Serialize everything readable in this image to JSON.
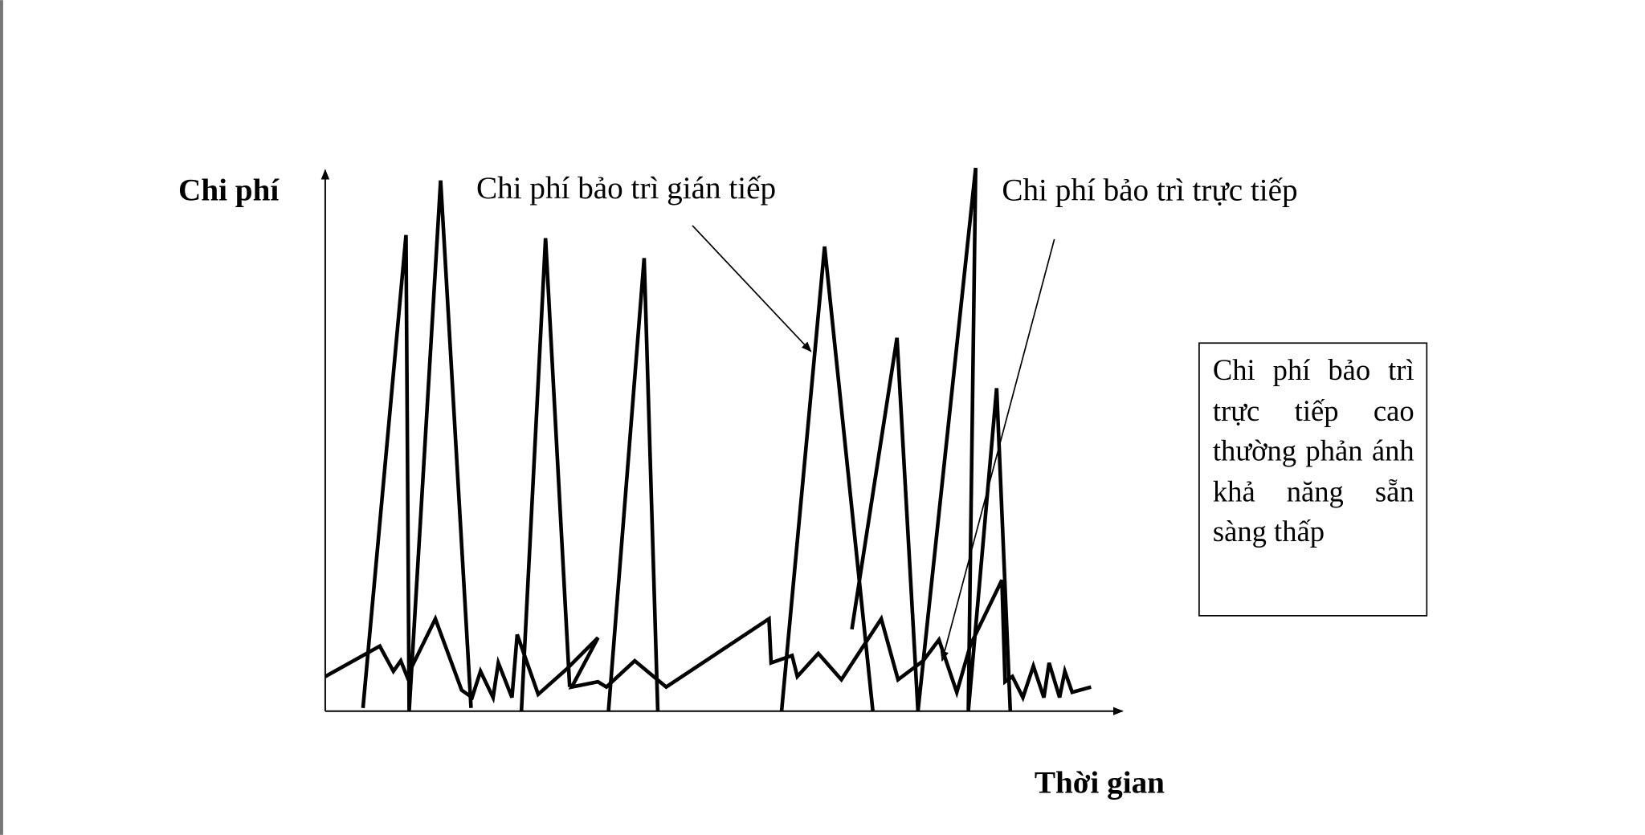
{
  "axes": {
    "y_label": "Chi phí",
    "x_label": "Thời gian"
  },
  "labels": [
    "Chi phí bảo trì gián tiếp",
    "Chi phí bảo trì trực tiếp"
  ],
  "note": "Chi phí bảo trì trực tiếp cao thường phản ánh khả năng sẵn sàng thấp"
}
